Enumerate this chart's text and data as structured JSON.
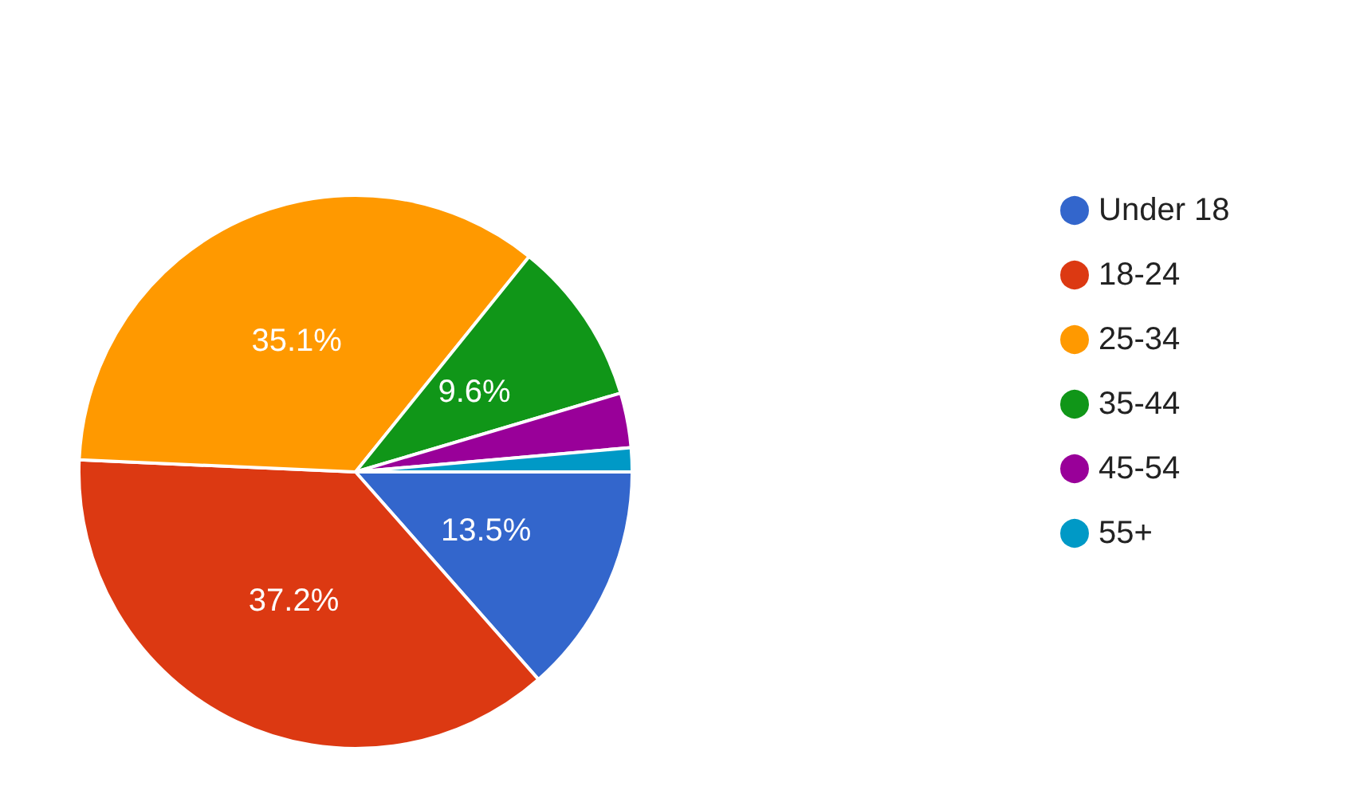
{
  "chart_data": {
    "type": "pie",
    "categories": [
      "Under 18",
      "18-24",
      "25-34",
      "35-44",
      "45-54",
      "55+"
    ],
    "values": [
      13.5,
      37.2,
      35.1,
      9.6,
      3.2,
      1.4
    ],
    "colors": [
      "#3366cc",
      "#dc3912",
      "#ff9900",
      "#109618",
      "#990099",
      "#0099c6"
    ],
    "value_labels": [
      "13.5%",
      "37.2%",
      "35.1%",
      "9.6%",
      null,
      null
    ],
    "legend": "right"
  }
}
